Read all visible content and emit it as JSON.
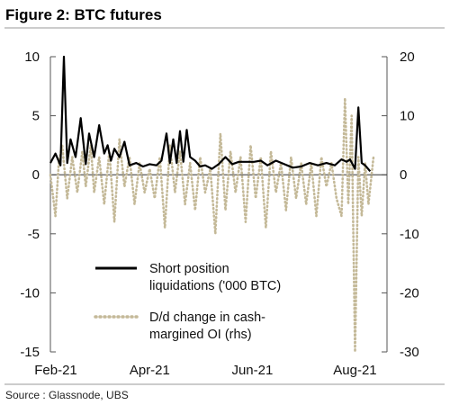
{
  "figure": {
    "title": "Figure 2: BTC futures",
    "source": "Source : Glassnode, UBS"
  },
  "chart_data": {
    "type": "line",
    "title": "Figure 2: BTC futures",
    "x_ticks": [
      "Feb-21",
      "Apr-21",
      "Jun-21",
      "Aug-21"
    ],
    "x_range": [
      "2021-02-01",
      "2021-08-20"
    ],
    "y_left": {
      "min": -15,
      "max": 10,
      "ticks": [
        10,
        5,
        0,
        -5,
        -10,
        -15
      ]
    },
    "y_right": {
      "min": -30,
      "max": 20,
      "ticks": [
        20,
        10,
        0,
        -10,
        -20,
        -30
      ]
    },
    "legend_placement": "lower-center",
    "series": [
      {
        "name": "Short position liquidations ('000 BTC)",
        "legend_lines": [
          "Short position",
          "liquidations ('000 BTC)"
        ],
        "axis": "left",
        "style": "solid",
        "color": "#000000",
        "x": [
          "2021-02-01",
          "2021-02-04",
          "2021-02-07",
          "2021-02-09",
          "2021-02-11",
          "2021-02-13",
          "2021-02-16",
          "2021-02-19",
          "2021-02-22",
          "2021-02-24",
          "2021-02-27",
          "2021-03-02",
          "2021-03-05",
          "2021-03-07",
          "2021-03-09",
          "2021-03-11",
          "2021-03-14",
          "2021-03-17",
          "2021-03-20",
          "2021-03-24",
          "2021-03-28",
          "2021-04-01",
          "2021-04-05",
          "2021-04-08",
          "2021-04-11",
          "2021-04-13",
          "2021-04-15",
          "2021-04-17",
          "2021-04-19",
          "2021-04-21",
          "2021-04-23",
          "2021-04-25",
          "2021-04-28",
          "2021-05-01",
          "2021-05-04",
          "2021-05-08",
          "2021-05-12",
          "2021-05-16",
          "2021-05-20",
          "2021-05-24",
          "2021-05-28",
          "2021-06-02",
          "2021-06-06",
          "2021-06-10",
          "2021-06-15",
          "2021-06-20",
          "2021-06-25",
          "2021-06-30",
          "2021-07-05",
          "2021-07-10",
          "2021-07-15",
          "2021-07-20",
          "2021-07-24",
          "2021-07-27",
          "2021-07-29",
          "2021-08-01",
          "2021-08-03",
          "2021-08-05",
          "2021-08-07",
          "2021-08-10"
        ],
        "values": [
          1.0,
          1.8,
          0.8,
          10.0,
          1.0,
          3.0,
          1.5,
          4.8,
          0.9,
          3.5,
          1.5,
          4.2,
          1.8,
          2.5,
          1.2,
          2.2,
          1.5,
          2.8,
          0.8,
          1.0,
          0.7,
          0.9,
          0.8,
          1.2,
          3.5,
          1.0,
          3.0,
          1.0,
          3.7,
          1.1,
          3.8,
          1.5,
          1.2,
          0.7,
          0.8,
          0.5,
          0.9,
          1.5,
          0.9,
          1.1,
          1.1,
          1.1,
          1.2,
          0.8,
          1.2,
          0.9,
          0.6,
          0.7,
          1.0,
          0.8,
          1.0,
          0.8,
          1.3,
          1.1,
          1.3,
          0.5,
          5.7,
          1.0,
          0.8,
          0.3
        ]
      },
      {
        "name": "D/d change in cash-margined OI (rhs)",
        "legend_lines": [
          "D/d change in cash-",
          "margined OI (rhs)"
        ],
        "axis": "right",
        "style": "dotted",
        "color": "#c4b998",
        "x": [
          "2021-02-01",
          "2021-02-04",
          "2021-02-06",
          "2021-02-08",
          "2021-02-11",
          "2021-02-14",
          "2021-02-17",
          "2021-02-20",
          "2021-02-22",
          "2021-02-25",
          "2021-02-27",
          "2021-03-02",
          "2021-03-05",
          "2021-03-08",
          "2021-03-11",
          "2021-03-14",
          "2021-03-17",
          "2021-03-20",
          "2021-03-23",
          "2021-03-26",
          "2021-03-29",
          "2021-04-01",
          "2021-04-04",
          "2021-04-07",
          "2021-04-10",
          "2021-04-13",
          "2021-04-16",
          "2021-04-19",
          "2021-04-22",
          "2021-04-25",
          "2021-04-28",
          "2021-05-01",
          "2021-05-04",
          "2021-05-07",
          "2021-05-10",
          "2021-05-13",
          "2021-05-16",
          "2021-05-19",
          "2021-05-22",
          "2021-05-25",
          "2021-05-28",
          "2021-05-31",
          "2021-06-03",
          "2021-06-06",
          "2021-06-09",
          "2021-06-12",
          "2021-06-15",
          "2021-06-18",
          "2021-06-21",
          "2021-06-24",
          "2021-06-27",
          "2021-06-30",
          "2021-07-03",
          "2021-07-06",
          "2021-07-09",
          "2021-07-12",
          "2021-07-15",
          "2021-07-18",
          "2021-07-21",
          "2021-07-24",
          "2021-07-26",
          "2021-07-28",
          "2021-07-30",
          "2021-08-01",
          "2021-08-03",
          "2021-08-05",
          "2021-08-07",
          "2021-08-09",
          "2021-08-12"
        ],
        "values": [
          0,
          -7,
          2,
          5,
          -4,
          3,
          -3,
          4,
          -2,
          5,
          -3,
          3,
          -5,
          4,
          -8,
          6,
          -2,
          3,
          -5,
          2,
          -3,
          1,
          -4,
          3,
          -9,
          5,
          -3,
          4,
          -5,
          2,
          -6,
          3,
          -3,
          1,
          -10,
          7,
          -6,
          4,
          -3,
          3,
          -8,
          5,
          -4,
          3,
          -9,
          4,
          -3,
          2,
          -6,
          3,
          -4,
          2,
          -5,
          2,
          -7,
          3,
          -2,
          2,
          -4,
          -7,
          13,
          -5,
          10,
          -30,
          3,
          -7,
          2,
          -5,
          3
        ]
      }
    ]
  }
}
